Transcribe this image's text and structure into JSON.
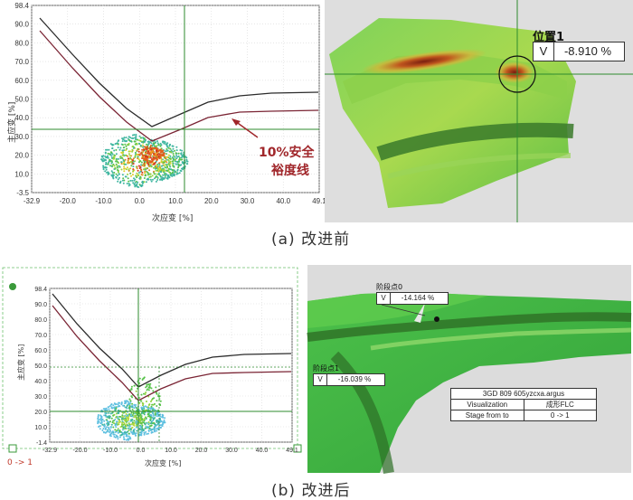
{
  "panel_a": {
    "chart": {
      "y_ticks": [
        "98.4",
        "90.0",
        "80.0",
        "70.0",
        "60.0",
        "50.0",
        "40.0",
        "30.0",
        "20.0",
        "10.0",
        "-3.5"
      ],
      "x_ticks": [
        "-32.9",
        "-20.0",
        "-10.0",
        "0.0",
        "10.0",
        "20.0",
        "30.0",
        "40.0",
        "49.1"
      ],
      "ylabel": "主应变 [%]",
      "xlabel": "次应变 [%]",
      "annotation_line1": "10%安全",
      "annotation_line2": "裕度线"
    },
    "probe": {
      "title": "位置1",
      "key": "V",
      "value": "-8.910 %"
    },
    "caption": "(a) 改进前"
  },
  "panel_b": {
    "chart": {
      "y_ticks": [
        "98.4",
        "90.0",
        "80.0",
        "70.0",
        "60.0",
        "50.0",
        "40.0",
        "30.0",
        "20.0",
        "10.0",
        "-1.4"
      ],
      "x_ticks": [
        "-32.9",
        "-20.0",
        "-10.0",
        "0.0",
        "10.0",
        "20.0",
        "30.0",
        "40.0",
        "49.1"
      ],
      "ylabel": "主应变 [%]",
      "xlabel": "次应变 [%]",
      "stage_marker": "0 -> 1"
    },
    "probe0": {
      "title": "阶段点0",
      "key": "V",
      "value": "-14.164 %"
    },
    "probe1": {
      "title": "阶段点1",
      "key": "V",
      "value": "-16.039 %"
    },
    "info": {
      "filename": "3GD 809 605yzcxa.argus",
      "visualization_label": "Visualization",
      "visualization_value": "成形FLC",
      "stage_label": "Stage from to",
      "stage_value": "0 -> 1"
    },
    "caption": "(b) 改进后"
  },
  "colors": {
    "flc_upper": "#2b2b2b",
    "flc_lower": "#7a2434",
    "guide": "#2e8b2e",
    "annotation": "#a0262a"
  }
}
